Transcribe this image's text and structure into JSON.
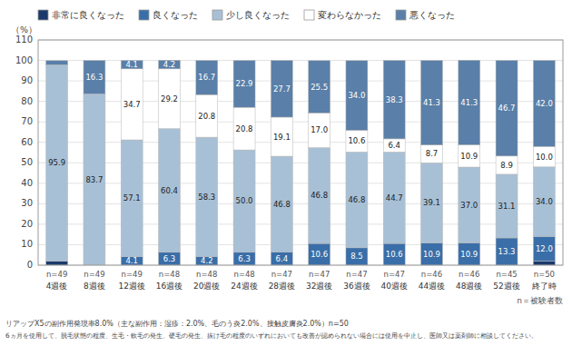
{
  "chart_data": {
    "type": "bar",
    "stacked": true,
    "data_labels": true,
    "grid": true,
    "legend": "top",
    "y_label": "（%）",
    "categories": [
      "4週後",
      "8週後",
      "12週後",
      "16週後",
      "20週後",
      "24週後",
      "28週後",
      "32週後",
      "36週後",
      "40週後",
      "44週後",
      "48週後",
      "52週後",
      "終了時"
    ],
    "ylim": [
      0,
      110
    ],
    "yticks": [
      0,
      10,
      20,
      30,
      40,
      50,
      60,
      70,
      80,
      90,
      100,
      110
    ],
    "series": [
      {
        "name": "非常に良くなった",
        "color": "#1b3a6b",
        "values": [
          2.0,
          0.0,
          0.0,
          0.0,
          0.0,
          0.0,
          0.0,
          0.0,
          0.0,
          0.0,
          0.0,
          0.0,
          0.0,
          2.0
        ],
        "value_labels": [
          null,
          null,
          null,
          null,
          null,
          null,
          null,
          null,
          null,
          null,
          null,
          null,
          null,
          null
        ]
      },
      {
        "name": "良くなった",
        "color": "#3a6ea8",
        "values": [
          0.0,
          0.0,
          4.1,
          6.3,
          4.2,
          6.3,
          6.4,
          10.6,
          8.5,
          10.6,
          10.9,
          10.9,
          13.3,
          12.0
        ],
        "value_labels": [
          null,
          null,
          "4.1",
          "6.3",
          "4.2",
          "6.3",
          "6.4",
          "10.6",
          "8.5",
          "10.6",
          "10.9",
          "10.9",
          "13.3",
          "12.0"
        ]
      },
      {
        "name": "少し良くなった",
        "color": "#a8c0d6",
        "values": [
          95.9,
          83.7,
          57.1,
          60.4,
          58.3,
          50.0,
          46.8,
          46.8,
          46.8,
          44.7,
          39.1,
          37.0,
          31.1,
          34.0
        ],
        "value_labels": [
          "95.9",
          "83.7",
          "57.1",
          "60.4",
          "58.3",
          "50.0",
          "46.8",
          "46.8",
          "46.8",
          "44.7",
          "39.1",
          "37.0",
          "31.1",
          "34.0"
        ]
      },
      {
        "name": "変わらなかった",
        "color": "#ffffff",
        "values": [
          0.0,
          0.0,
          34.7,
          29.2,
          20.8,
          20.8,
          19.1,
          17.0,
          10.6,
          6.4,
          8.7,
          10.9,
          8.9,
          10.0
        ],
        "value_labels": [
          null,
          null,
          "34.7",
          "29.2",
          "20.8",
          "20.8",
          "19.1",
          "17.0",
          "10.6",
          "6.4",
          "8.7",
          "10.9",
          "8.9",
          "10.0"
        ]
      },
      {
        "name": "悪くなった",
        "color": "#5a7fa8",
        "values": [
          2.0,
          16.3,
          4.1,
          4.2,
          16.7,
          22.9,
          27.7,
          25.5,
          34.0,
          38.3,
          41.3,
          41.3,
          46.7,
          42.0
        ],
        "value_labels": [
          null,
          "16.3",
          "4.1",
          "4.2",
          "16.7",
          "22.9",
          "27.7",
          "25.5",
          "34.0",
          "38.3",
          "41.3",
          "41.3",
          "46.7",
          "42.0"
        ]
      }
    ],
    "annotations": [
      {
        "text": "n=49",
        "x": "4週後"
      },
      {
        "text": "n=49",
        "x": "8週後"
      },
      {
        "text": "n=49",
        "x": "12週後"
      },
      {
        "text": "n=48",
        "x": "16週後"
      },
      {
        "text": "n=48",
        "x": "20週後"
      },
      {
        "text": "n=48",
        "x": "24週後"
      },
      {
        "text": "n=47",
        "x": "28週後"
      },
      {
        "text": "n=47",
        "x": "32週後"
      },
      {
        "text": "n=47",
        "x": "36週後"
      },
      {
        "text": "n=47",
        "x": "40週後"
      },
      {
        "text": "n=46",
        "x": "44週後"
      },
      {
        "text": "n=46",
        "x": "48週後"
      },
      {
        "text": "n=45",
        "x": "52週後"
      },
      {
        "text": "n=50",
        "x": "終了時"
      },
      {
        "text": "n＝被験者数"
      },
      {
        "text": "リアップX5の副作用発現率8.0%（主な副作用：湿疹：2.0%、毛のう炎2.0%、接触皮膚炎2.0%）n=50"
      },
      {
        "text": "6ヵ月を使用して、脱毛状態の程度、生毛・軟毛の発生、硬毛の発生、抜け毛の程度のいずれにおいても改善が認められない場合には使用を中止し、医師又は薬剤師に相談してください。"
      }
    ]
  }
}
